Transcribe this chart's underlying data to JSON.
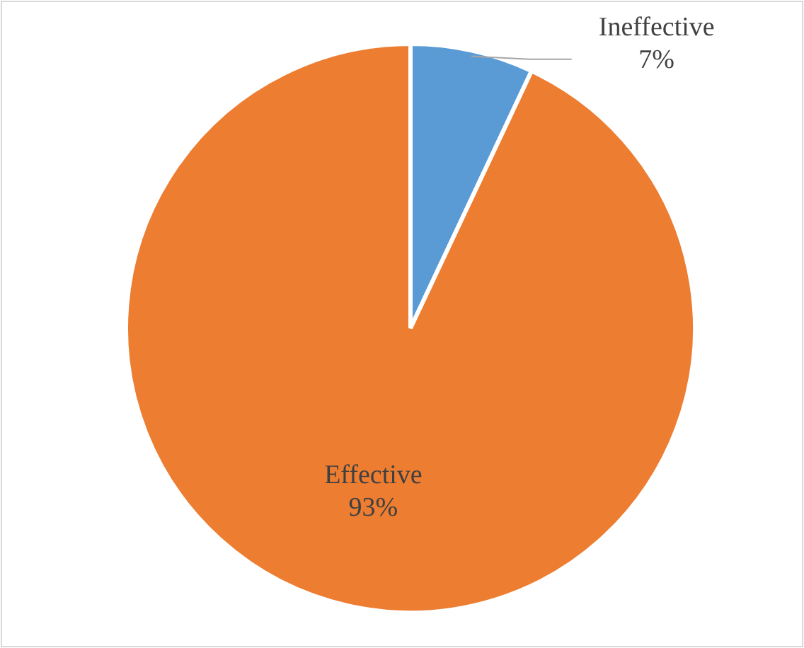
{
  "chart_data": {
    "type": "pie",
    "categories": [
      "Ineffective",
      "Effective"
    ],
    "values": [
      7,
      93
    ],
    "colors": [
      "#5b9bd5",
      "#ed7d31"
    ],
    "value_labels": [
      "7%",
      "93%"
    ]
  }
}
